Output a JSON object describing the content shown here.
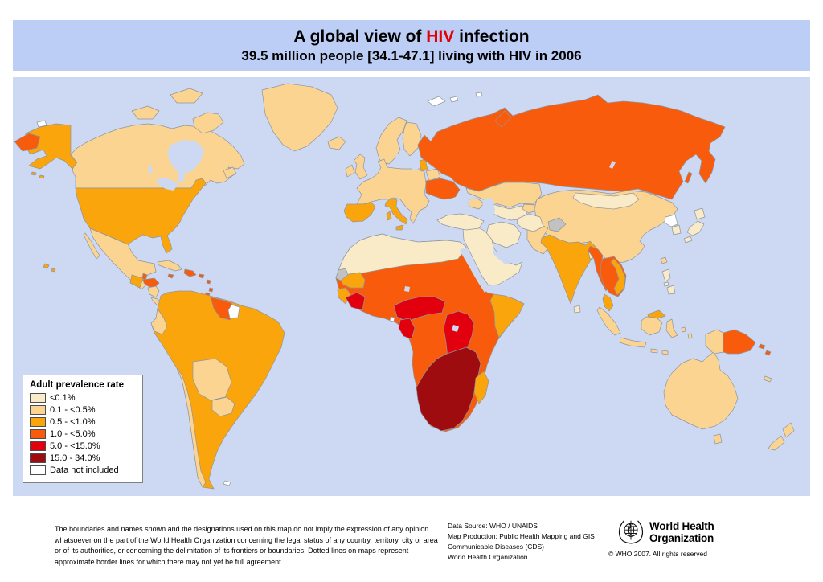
{
  "title": {
    "prefix": "A global view of ",
    "highlight": "HIV",
    "suffix": " infection",
    "highlight_color": "#e50000",
    "subtitle": "39.5 million people [34.1-47.1] living with HIV in 2006",
    "bar_color": "#bdcef6"
  },
  "legend": {
    "title": "Adult prevalence rate",
    "items": [
      {
        "label": "<0.1%",
        "color": "#f9ebc7"
      },
      {
        "label": "0.1 - <0.5%",
        "color": "#fbd492"
      },
      {
        "label": "0.5 - <1.0%",
        "color": "#fba50d"
      },
      {
        "label": "1.0 - <5.0%",
        "color": "#f95b0d"
      },
      {
        "label": "5.0 - <15.0%",
        "color": "#e2000f"
      },
      {
        "label": "15.0 - 34.0%",
        "color": "#9e0c10"
      },
      {
        "label": "Data not included",
        "color": "#ffffff"
      }
    ]
  },
  "footer": {
    "disclaimer": "The boundaries and names shown and the designations used on this map do not imply the expression of any opinion whatsoever on the part of the World Health Organization concerning the legal status of any country, territory, city or area or of its authorities, or concerning the delimitation of its frontiers or boundaries.  Dotted lines on maps represent approximate border lines for which there may not yet be full agreement.",
    "credits": [
      "Data Source: WHO / UNAIDS",
      "Map Production: Public Health Mapping and GIS",
      "Communicable Diseases (CDS)",
      "World Health Organization"
    ],
    "logo_line1": "World Health",
    "logo_line2": "Organization",
    "copyright": "© WHO 2007. All rights reserved"
  },
  "map": {
    "ocean_color": "#cdd9f3",
    "disputed_color": "#c2c2c2",
    "border_color": "#8f959e",
    "regions": {
      "ocean": "water",
      "canada": 1,
      "baffin": 1,
      "victoria_island": 1,
      "ellesmere": 1,
      "newfoundland": 1,
      "greenland": 1,
      "iceland": 1,
      "alaska": 2,
      "aleutians": 2,
      "chukotka": 3,
      "wrangel": 6,
      "usa": 2,
      "hawaii": 2,
      "mexico": 1,
      "baja": 1,
      "guatemala": 2,
      "belize": 3,
      "honduras": 3,
      "nicaragua": 1,
      "costarica": 1,
      "panama": 2,
      "cuba": 1,
      "hispaniola": 3,
      "jamaica": 3,
      "puertorico": 3,
      "antilles": 3,
      "trinidad": 3,
      "south_america": 2,
      "ecuador": 1,
      "bolivia": 1,
      "paraguay": 1,
      "chile": 1,
      "guyanas": 3,
      "french_guiana": 6,
      "falklands": 6,
      "africa": 3,
      "north_africa": 0,
      "western_sahara": "disputed",
      "mauritania": 2,
      "liberia": 2,
      "cote_divoire": 4,
      "cameroon_car": 4,
      "gabon_congo": 4,
      "eq_guinea": 6,
      "east_africa": 4,
      "southern_africa": 5,
      "madagascar": 2,
      "somalia": 2,
      "scandinavia": 1,
      "finland": 1,
      "uk": 1,
      "ireland": 1,
      "west_europe": 1,
      "spain": 2,
      "italy": 2,
      "sicily": 2,
      "sardinia": 2,
      "baltics": 2,
      "belarus": 1,
      "ukraine": 3,
      "svalbard": 6,
      "franz_josef": 6,
      "russia": 3,
      "novaya_zemlya": 3,
      "sakhalin": 3,
      "kazakhstan": 1,
      "caucasus": 1,
      "central_asia": 0,
      "kyrgyzstan": 1,
      "china": 1,
      "mongolia": 0,
      "north_korea": 6,
      "south_korea": 0,
      "japan": 0,
      "taiwan": 1,
      "kashmir": "disputed",
      "pakistan": 1,
      "afghanistan": 0,
      "iran": 0,
      "middle_east": 0,
      "turkey": 0,
      "india": 2,
      "bangladesh": 0,
      "sri_lanka": 0,
      "myanmar": 3,
      "indochina": 3,
      "vietnam": 2,
      "malaysia": 2,
      "east_malaysia": 2,
      "sumatra": 1,
      "java": 1,
      "borneo": 1,
      "sulawesi": 1,
      "lesser_sunda": 1,
      "moluccas": 1,
      "philippines": 0,
      "png_west": 1,
      "png_east": 3,
      "solomons": 3,
      "australia": 1,
      "tasmania": 1,
      "new_zealand": 1,
      "new_caledonia": 1,
      "hudson_bay": "water",
      "great_lakes": "water",
      "lake_winnipeg": "water",
      "baltic_sea": "water",
      "black_sea": "water",
      "caspian_sea": "water",
      "persian_gulf": "water",
      "red_sea": "water",
      "lake_baikal": "water",
      "lake_chad": "water",
      "lake_victoria": "water"
    }
  }
}
